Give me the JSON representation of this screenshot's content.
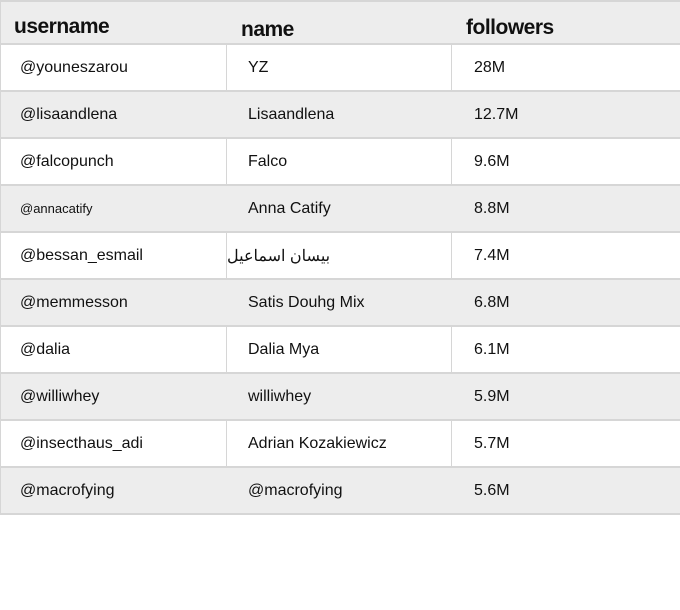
{
  "table": {
    "headers": [
      "username",
      "name",
      "followers"
    ],
    "rows": [
      {
        "username": "@youneszarou",
        "name": "YZ",
        "followers": "28M"
      },
      {
        "username": "@lisaandlena",
        "name": "Lisaandlena",
        "followers": "12.7M"
      },
      {
        "username": "@falcopunch",
        "name": "Falco",
        "followers": "9.6M"
      },
      {
        "username": "@annacatify",
        "name": "Anna Catify",
        "followers": "8.8M"
      },
      {
        "username": "@bessan_esmail",
        "name": "بيسان اسماعيل",
        "followers": "7.4M"
      },
      {
        "username": "@memmesson",
        "name": "Satis Douhg Mix",
        "followers": "6.8M"
      },
      {
        "username": "@dalia",
        "name": "Dalia Mya",
        "followers": "6.1M"
      },
      {
        "username": "@williwhey",
        "name": "williwhey",
        "followers": "5.9M"
      },
      {
        "username": "@insecthaus_adi",
        "name": "Adrian Kozakiewicz",
        "followers": "5.7M"
      },
      {
        "username": "@macrofying",
        "name": "@macrofying",
        "followers": "5.6M"
      }
    ]
  }
}
